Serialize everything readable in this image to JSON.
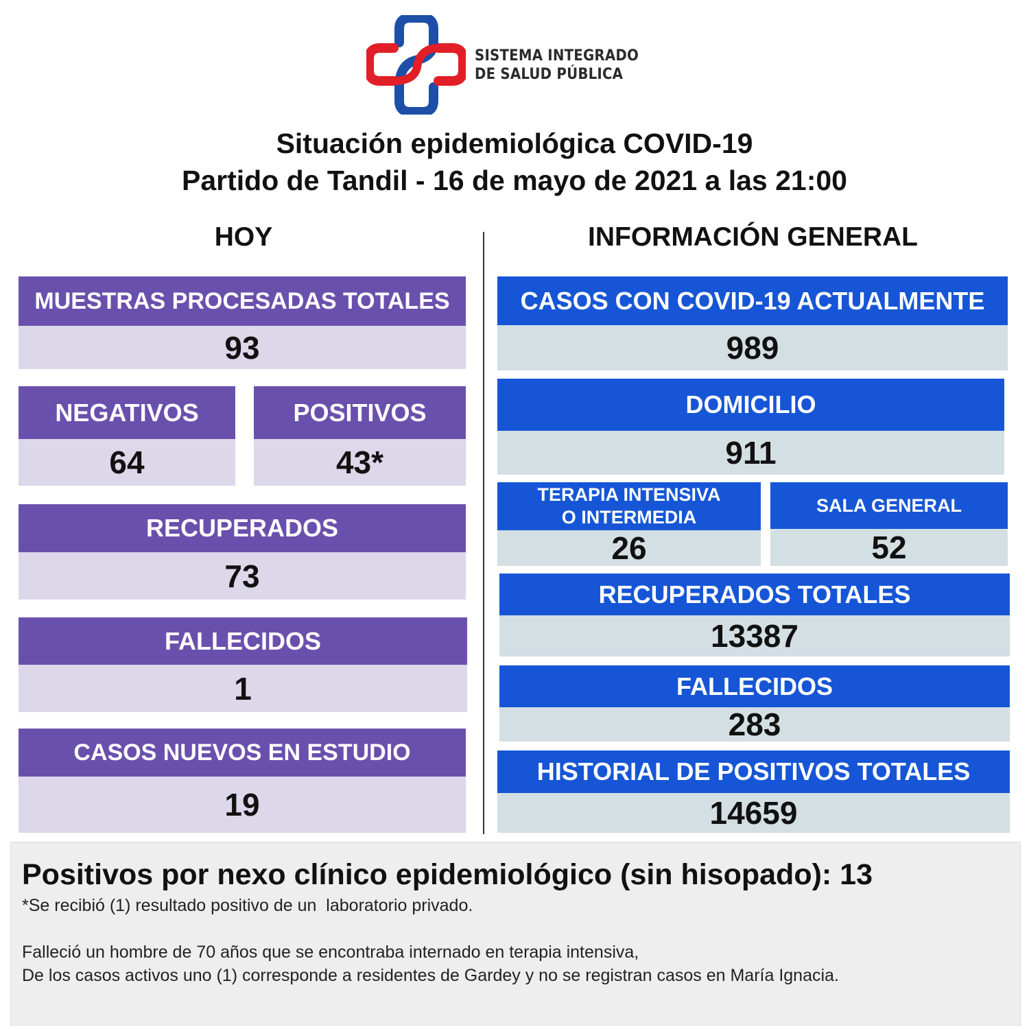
{
  "logo": {
    "line1": "SISTEMA INTEGRADO",
    "line2": "DE SALUD PÚBLICA",
    "colors": {
      "red": "#e21f26",
      "blue": "#1e4fa8"
    }
  },
  "title": {
    "line1": "Situación epidemiológica COVID-19",
    "line2": "Partido de Tandil - 16 de mayo de 2021 a las 21:00"
  },
  "hoy": {
    "heading": "HOY",
    "muestras": {
      "label": "MUESTRAS PROCESADAS TOTALES",
      "value": "93"
    },
    "negativos": {
      "label": "NEGATIVOS",
      "value": "64"
    },
    "positivos": {
      "label": "POSITIVOS",
      "value": "43*"
    },
    "recuperados": {
      "label": "RECUPERADOS",
      "value": "73"
    },
    "fallecidos": {
      "label": "FALLECIDOS",
      "value": "1"
    },
    "casos_nuevos": {
      "label": "CASOS NUEVOS EN ESTUDIO",
      "value": "19"
    }
  },
  "general": {
    "heading": "INFORMACIÓN GENERAL",
    "casos_actuales": {
      "label": "CASOS CON COVID-19 ACTUALMENTE",
      "value": "989"
    },
    "domicilio": {
      "label": "DOMICILIO",
      "value": "911"
    },
    "terapia": {
      "label_line1": "TERAPIA INTENSIVA",
      "label_line2": "O INTERMEDIA",
      "value": "26"
    },
    "sala_general": {
      "label": "SALA GENERAL",
      "value": "52"
    },
    "recuperados_totales": {
      "label": "RECUPERADOS TOTALES",
      "value": "13387"
    },
    "fallecidos": {
      "label": "FALLECIDOS",
      "value": "283"
    },
    "historial": {
      "label": "HISTORIAL DE POSITIVOS TOTALES",
      "value": "14659"
    }
  },
  "footer": {
    "main": "Positivos por nexo clínico epidemiológico (sin hisopado): 13",
    "note": "*Se recibió (1) resultado positivo de un  laboratorio privado.",
    "line1": "Falleció un hombre de 70 años que se encontraba internado en terapia intensiva,",
    "line2": "De los casos activos uno (1) corresponde a residentes de Gardey y no se registran casos en María Ignacia."
  },
  "colors": {
    "purple_header": "#6a50ad",
    "purple_value_bg": "#ddd7ea",
    "blue_header": "#1656d6",
    "blue_value_bg": "#d3dfe3",
    "footer_bg": "#eeeeee"
  }
}
